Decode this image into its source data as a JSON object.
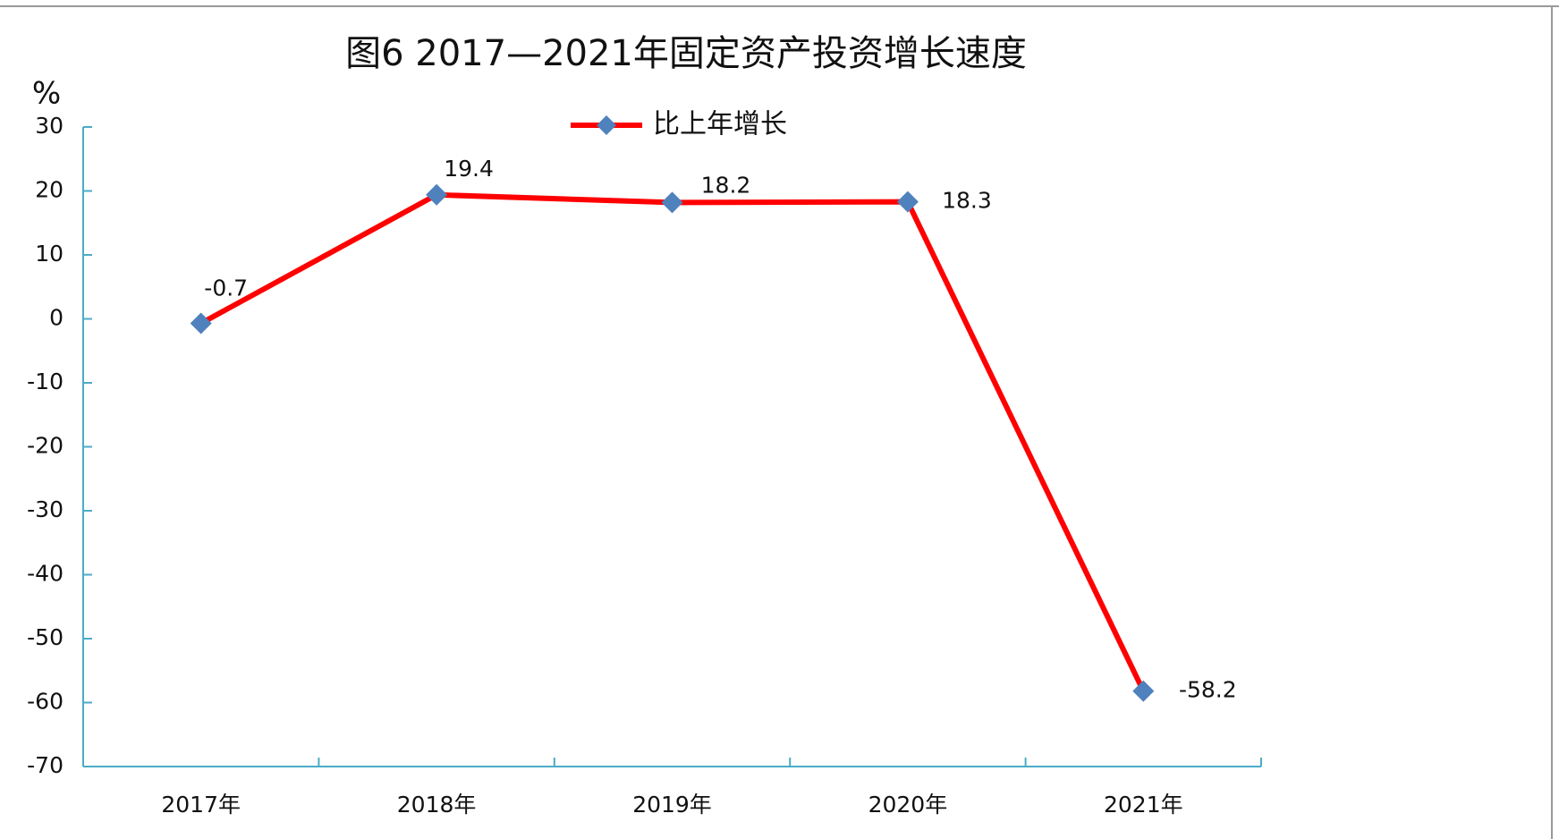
{
  "chart_data": {
    "type": "line",
    "title": "图6  2017—2021年固定资产投资增长速度",
    "y_label": "%",
    "categories": [
      "2017年",
      "2018年",
      "2019年",
      "2020年",
      "2021年"
    ],
    "series": [
      {
        "name": "比上年增长",
        "color": "#ff0000",
        "marker_color": "#4f81bd",
        "values": [
          -0.7,
          19.4,
          18.2,
          18.3,
          -58.2
        ]
      }
    ],
    "ylim": [
      -70,
      30
    ],
    "yticks": [
      -70,
      -60,
      -50,
      -40,
      -30,
      -20,
      -10,
      0,
      10,
      20,
      30
    ],
    "grid": false,
    "legend": "top"
  }
}
